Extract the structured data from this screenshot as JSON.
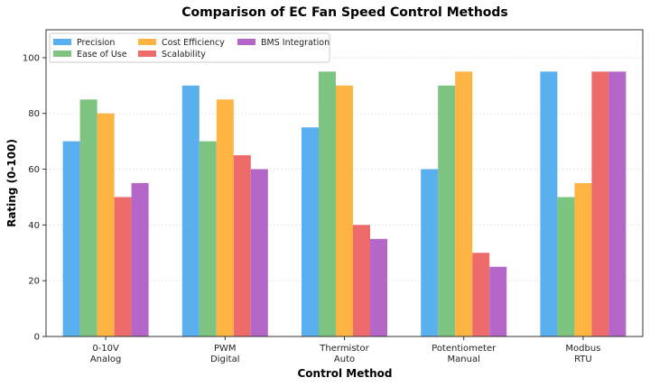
{
  "chart_data": {
    "type": "bar",
    "title": "Comparison of EC Fan Speed Control Methods",
    "xlabel": "Control Method",
    "ylabel": "Rating (0-100)",
    "ylim": [
      0,
      110
    ],
    "yticks": [
      0,
      20,
      40,
      60,
      80,
      100
    ],
    "grid": "horizontal",
    "legend_position": "top-left",
    "categories": [
      [
        "0-10V",
        "Analog"
      ],
      [
        "PWM",
        "Digital"
      ],
      [
        "Thermistor",
        "Auto"
      ],
      [
        "Potentiometer",
        "Manual"
      ],
      [
        "Modbus",
        "RTU"
      ]
    ],
    "series": [
      {
        "name": "Precision",
        "color": "#5aafef",
        "values": [
          70,
          90,
          75,
          60,
          95
        ]
      },
      {
        "name": "Ease of Use",
        "color": "#7cc47f",
        "values": [
          85,
          70,
          95,
          90,
          50
        ]
      },
      {
        "name": "Cost Efficiency",
        "color": "#fdb443",
        "values": [
          80,
          85,
          90,
          95,
          55
        ]
      },
      {
        "name": "Scalability",
        "color": "#ee6b6b",
        "values": [
          50,
          65,
          40,
          30,
          95
        ]
      },
      {
        "name": "BMS Integration",
        "color": "#b566c9",
        "values": [
          55,
          60,
          35,
          25,
          95
        ]
      }
    ]
  }
}
